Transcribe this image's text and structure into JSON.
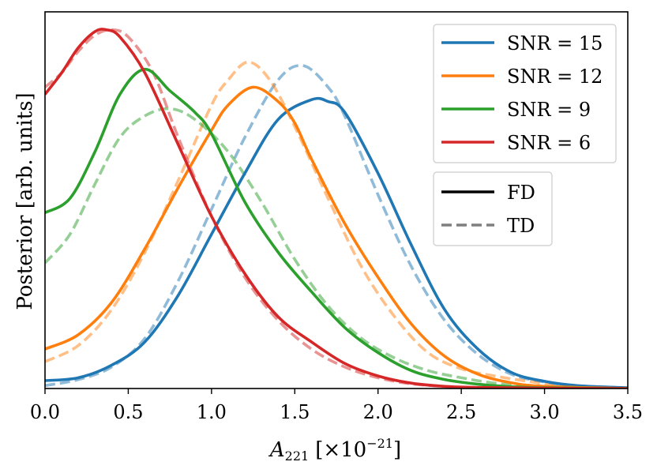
{
  "chart_data": {
    "type": "line",
    "title": "",
    "xlabel_main": "A",
    "xlabel_sub": "221",
    "xlabel_unit_prefix": "[×10",
    "xlabel_unit_exp": "−21",
    "xlabel_unit_suffix": "]",
    "ylabel": "Posterior [arb. units]",
    "xlim": [
      0.0,
      3.5
    ],
    "ylim": [
      0.0,
      1.05
    ],
    "xticks": [
      "0.0",
      "0.5",
      "1.0",
      "1.5",
      "2.0",
      "2.5",
      "3.0",
      "3.5"
    ],
    "grid": false,
    "legend_position": "top-right",
    "series": [
      {
        "name": "SNR = 15",
        "method": "FD",
        "color": "#1f77b4",
        "style": "solid",
        "x": [
          0.0,
          0.2,
          0.4,
          0.6,
          0.8,
          1.0,
          1.2,
          1.4,
          1.6,
          1.7,
          1.8,
          2.0,
          2.2,
          2.4,
          2.6,
          2.8,
          3.0,
          3.2,
          3.5
        ],
        "y": [
          0.022,
          0.03,
          0.065,
          0.13,
          0.26,
          0.43,
          0.6,
          0.75,
          0.805,
          0.8,
          0.77,
          0.6,
          0.4,
          0.22,
          0.11,
          0.045,
          0.02,
          0.008,
          0.002
        ]
      },
      {
        "name": "SNR = 15",
        "method": "TD",
        "color": "#1f77b4",
        "style": "dashed",
        "x": [
          0.0,
          0.2,
          0.4,
          0.6,
          0.8,
          1.0,
          1.2,
          1.4,
          1.55,
          1.7,
          1.8,
          2.0,
          2.2,
          2.4,
          2.6,
          2.8,
          3.0,
          3.2,
          3.5
        ],
        "y": [
          0.008,
          0.025,
          0.06,
          0.14,
          0.3,
          0.5,
          0.7,
          0.86,
          0.9,
          0.84,
          0.76,
          0.54,
          0.34,
          0.19,
          0.095,
          0.04,
          0.018,
          0.006,
          0.0
        ]
      },
      {
        "name": "SNR = 12",
        "method": "FD",
        "color": "#ff7f0e",
        "style": "solid",
        "x": [
          0.0,
          0.2,
          0.4,
          0.6,
          0.8,
          1.0,
          1.1,
          1.25,
          1.4,
          1.5,
          1.6,
          1.8,
          2.0,
          2.2,
          2.4,
          2.6,
          2.8,
          3.0,
          3.5
        ],
        "y": [
          0.11,
          0.15,
          0.24,
          0.39,
          0.56,
          0.72,
          0.79,
          0.84,
          0.8,
          0.74,
          0.64,
          0.46,
          0.31,
          0.18,
          0.09,
          0.04,
          0.016,
          0.006,
          0.0
        ]
      },
      {
        "name": "SNR = 12",
        "method": "TD",
        "color": "#ff7f0e",
        "style": "dashed",
        "x": [
          0.0,
          0.2,
          0.4,
          0.6,
          0.8,
          1.0,
          1.1,
          1.22,
          1.35,
          1.5,
          1.7,
          1.9,
          2.1,
          2.3,
          2.5,
          2.7,
          2.9,
          3.1,
          3.5
        ],
        "y": [
          0.075,
          0.12,
          0.22,
          0.38,
          0.58,
          0.79,
          0.86,
          0.91,
          0.86,
          0.73,
          0.53,
          0.34,
          0.2,
          0.1,
          0.055,
          0.035,
          0.02,
          0.008,
          0.0
        ]
      },
      {
        "name": "SNR = 9",
        "method": "FD",
        "color": "#2ca02c",
        "style": "solid",
        "x": [
          0.0,
          0.15,
          0.3,
          0.45,
          0.6,
          0.75,
          0.9,
          1.0,
          1.2,
          1.4,
          1.6,
          1.8,
          2.0,
          2.2,
          2.4,
          2.6,
          2.8,
          3.0,
          3.5
        ],
        "y": [
          0.49,
          0.53,
          0.66,
          0.82,
          0.89,
          0.83,
          0.77,
          0.71,
          0.52,
          0.38,
          0.27,
          0.17,
          0.1,
          0.05,
          0.025,
          0.012,
          0.005,
          0.002,
          0.0
        ]
      },
      {
        "name": "SNR = 9",
        "method": "TD",
        "color": "#2ca02c",
        "style": "dashed",
        "x": [
          0.0,
          0.15,
          0.3,
          0.45,
          0.6,
          0.75,
          0.9,
          1.1,
          1.3,
          1.5,
          1.7,
          1.9,
          2.1,
          2.3,
          2.5,
          2.7,
          2.9,
          3.1,
          3.5
        ],
        "y": [
          0.35,
          0.43,
          0.57,
          0.7,
          0.76,
          0.78,
          0.75,
          0.66,
          0.52,
          0.36,
          0.23,
          0.14,
          0.085,
          0.05,
          0.03,
          0.015,
          0.007,
          0.003,
          0.0
        ]
      },
      {
        "name": "SNR = 6",
        "method": "FD",
        "color": "#d62728",
        "style": "solid",
        "x": [
          0.0,
          0.1,
          0.2,
          0.3,
          0.37,
          0.45,
          0.6,
          0.8,
          1.0,
          1.2,
          1.4,
          1.6,
          1.8,
          2.0,
          2.2,
          2.4,
          2.6,
          3.0,
          3.5
        ],
        "y": [
          0.82,
          0.88,
          0.95,
          0.995,
          1.0,
          0.98,
          0.88,
          0.68,
          0.48,
          0.32,
          0.2,
          0.13,
          0.07,
          0.035,
          0.015,
          0.006,
          0.003,
          0.001,
          0.0
        ]
      },
      {
        "name": "SNR = 6",
        "method": "TD",
        "color": "#d62728",
        "style": "dashed",
        "x": [
          0.0,
          0.1,
          0.2,
          0.3,
          0.4,
          0.5,
          0.65,
          0.8,
          1.0,
          1.2,
          1.4,
          1.6,
          1.8,
          2.0,
          2.2,
          2.4,
          2.6,
          3.0,
          3.5
        ],
        "y": [
          0.84,
          0.88,
          0.94,
          0.985,
          1.0,
          0.98,
          0.88,
          0.7,
          0.48,
          0.31,
          0.19,
          0.11,
          0.06,
          0.03,
          0.013,
          0.006,
          0.002,
          0.0,
          0.0
        ]
      }
    ],
    "legend_snr": [
      {
        "label": "SNR = 15",
        "color": "#1f77b4"
      },
      {
        "label": "SNR = 12",
        "color": "#ff7f0e"
      },
      {
        "label": "SNR = 9",
        "color": "#2ca02c"
      },
      {
        "label": "SNR = 6",
        "color": "#d62728"
      }
    ],
    "legend_method": [
      {
        "label": "FD",
        "color": "#000000",
        "style": "solid"
      },
      {
        "label": "TD",
        "color": "#7f7f7f",
        "style": "dashed"
      }
    ]
  }
}
